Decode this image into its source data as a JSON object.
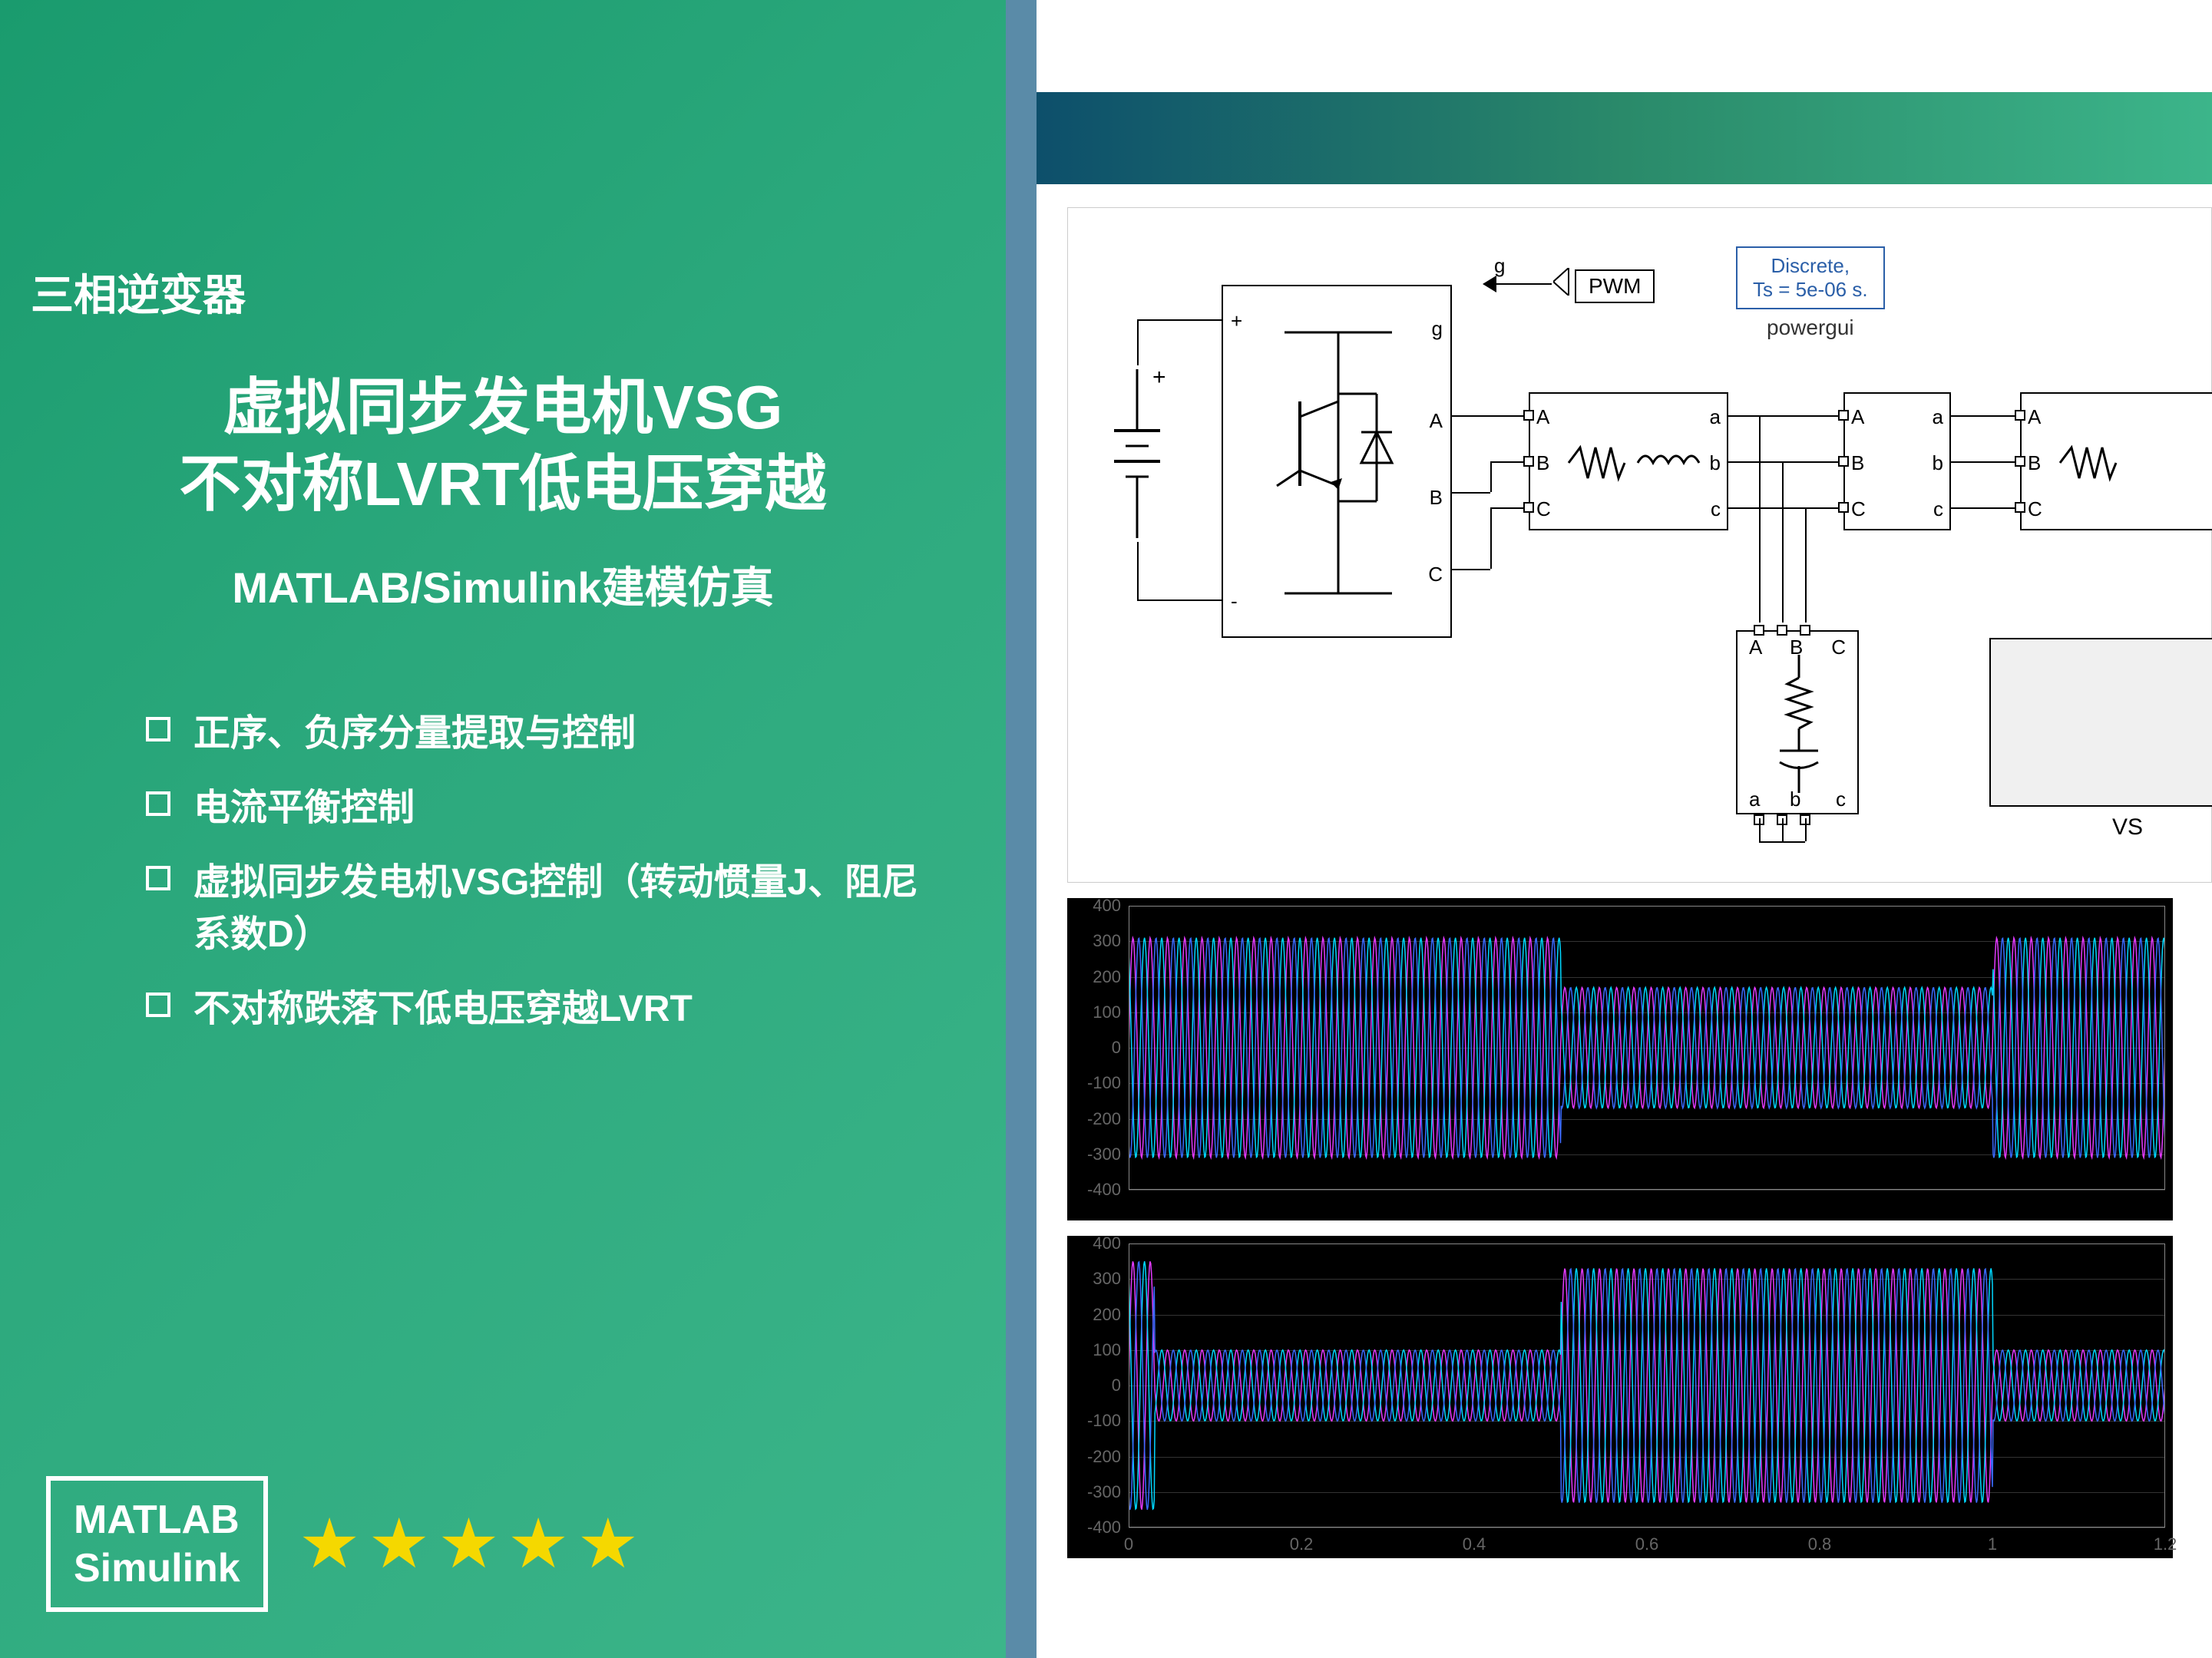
{
  "left": {
    "category": "三相逆变器",
    "title_line1": "虚拟同步发电机VSG",
    "title_line2": "不对称LVRT低电压穿越",
    "subtitle": "MATLAB/Simulink建模仿真",
    "bullets": [
      "正序、负序分量提取与控制",
      "电流平衡控制",
      "虚拟同步发电机VSG控制（转动惯量J、阻尼系数D）",
      "不对称跌落下低电压穿越LVRT"
    ],
    "matlab_box_line1": "MATLAB",
    "matlab_box_line2": "Simulink",
    "star_count": 5,
    "star_color": "#f5d800",
    "bg_gradient": [
      "#1a9b6e",
      "#2ba87c",
      "#3cb58a"
    ]
  },
  "diagram": {
    "powergui_line1": "Discrete,",
    "powergui_line2": "Ts = 5e-06 s.",
    "powergui_label": "powergui",
    "pwm_label": "PWM",
    "g_label": "g",
    "vs_label": "VS",
    "inverter": {
      "plus": "+",
      "minus": "-",
      "ports": [
        "A",
        "B",
        "C"
      ]
    },
    "filter_block": {
      "left_ports": [
        "A",
        "B",
        "C"
      ],
      "right_ports": [
        "a",
        "b",
        "c"
      ]
    },
    "trans_block": {
      "left_ports": [
        "A",
        "B",
        "C"
      ],
      "right_ports": [
        "a",
        "b",
        "c"
      ]
    },
    "load_block": {
      "top_ports": [
        "A",
        "B",
        "C"
      ],
      "bottom_ports": [
        "a",
        "b",
        "c"
      ]
    },
    "right_block": {
      "ports": [
        "A",
        "B",
        "C"
      ]
    },
    "colors": {
      "block_border": "#000000",
      "powergui_border": "#2b5fa8",
      "powergui_text": "#2b5fa8",
      "wire": "#000000"
    }
  },
  "chart1": {
    "ylim": [
      -400,
      400
    ],
    "yticks": [
      -400,
      -300,
      -200,
      -100,
      0,
      100,
      200,
      300,
      400
    ],
    "series_colors": [
      "#e43aff",
      "#00d8ff",
      "#3a6aff"
    ],
    "segments": [
      {
        "t0": 0.0,
        "t1": 0.5,
        "amp": 310
      },
      {
        "t0": 0.5,
        "t1": 1.0,
        "amp": 170
      },
      {
        "t0": 1.0,
        "t1": 1.2,
        "amp": 310
      }
    ],
    "freq_cycles_per_unit": 50,
    "bg": "#000000",
    "grid_color": "#333333"
  },
  "chart2": {
    "ylim": [
      -400,
      400
    ],
    "yticks": [
      -400,
      -300,
      -200,
      -100,
      0,
      100,
      200,
      300,
      400
    ],
    "xticks": [
      0,
      0.2,
      0.4,
      0.6,
      0.8,
      1,
      1.2
    ],
    "series_colors": [
      "#e43aff",
      "#00d8ff",
      "#3a6aff"
    ],
    "segments": [
      {
        "t0": 0.0,
        "t1": 0.03,
        "amp": 350
      },
      {
        "t0": 0.03,
        "t1": 0.5,
        "amp": 100
      },
      {
        "t0": 0.5,
        "t1": 1.0,
        "amp": 330
      },
      {
        "t0": 1.0,
        "t1": 1.2,
        "amp": 100
      }
    ],
    "freq_cycles_per_unit": 50,
    "bg": "#000000",
    "grid_color": "#333333"
  }
}
